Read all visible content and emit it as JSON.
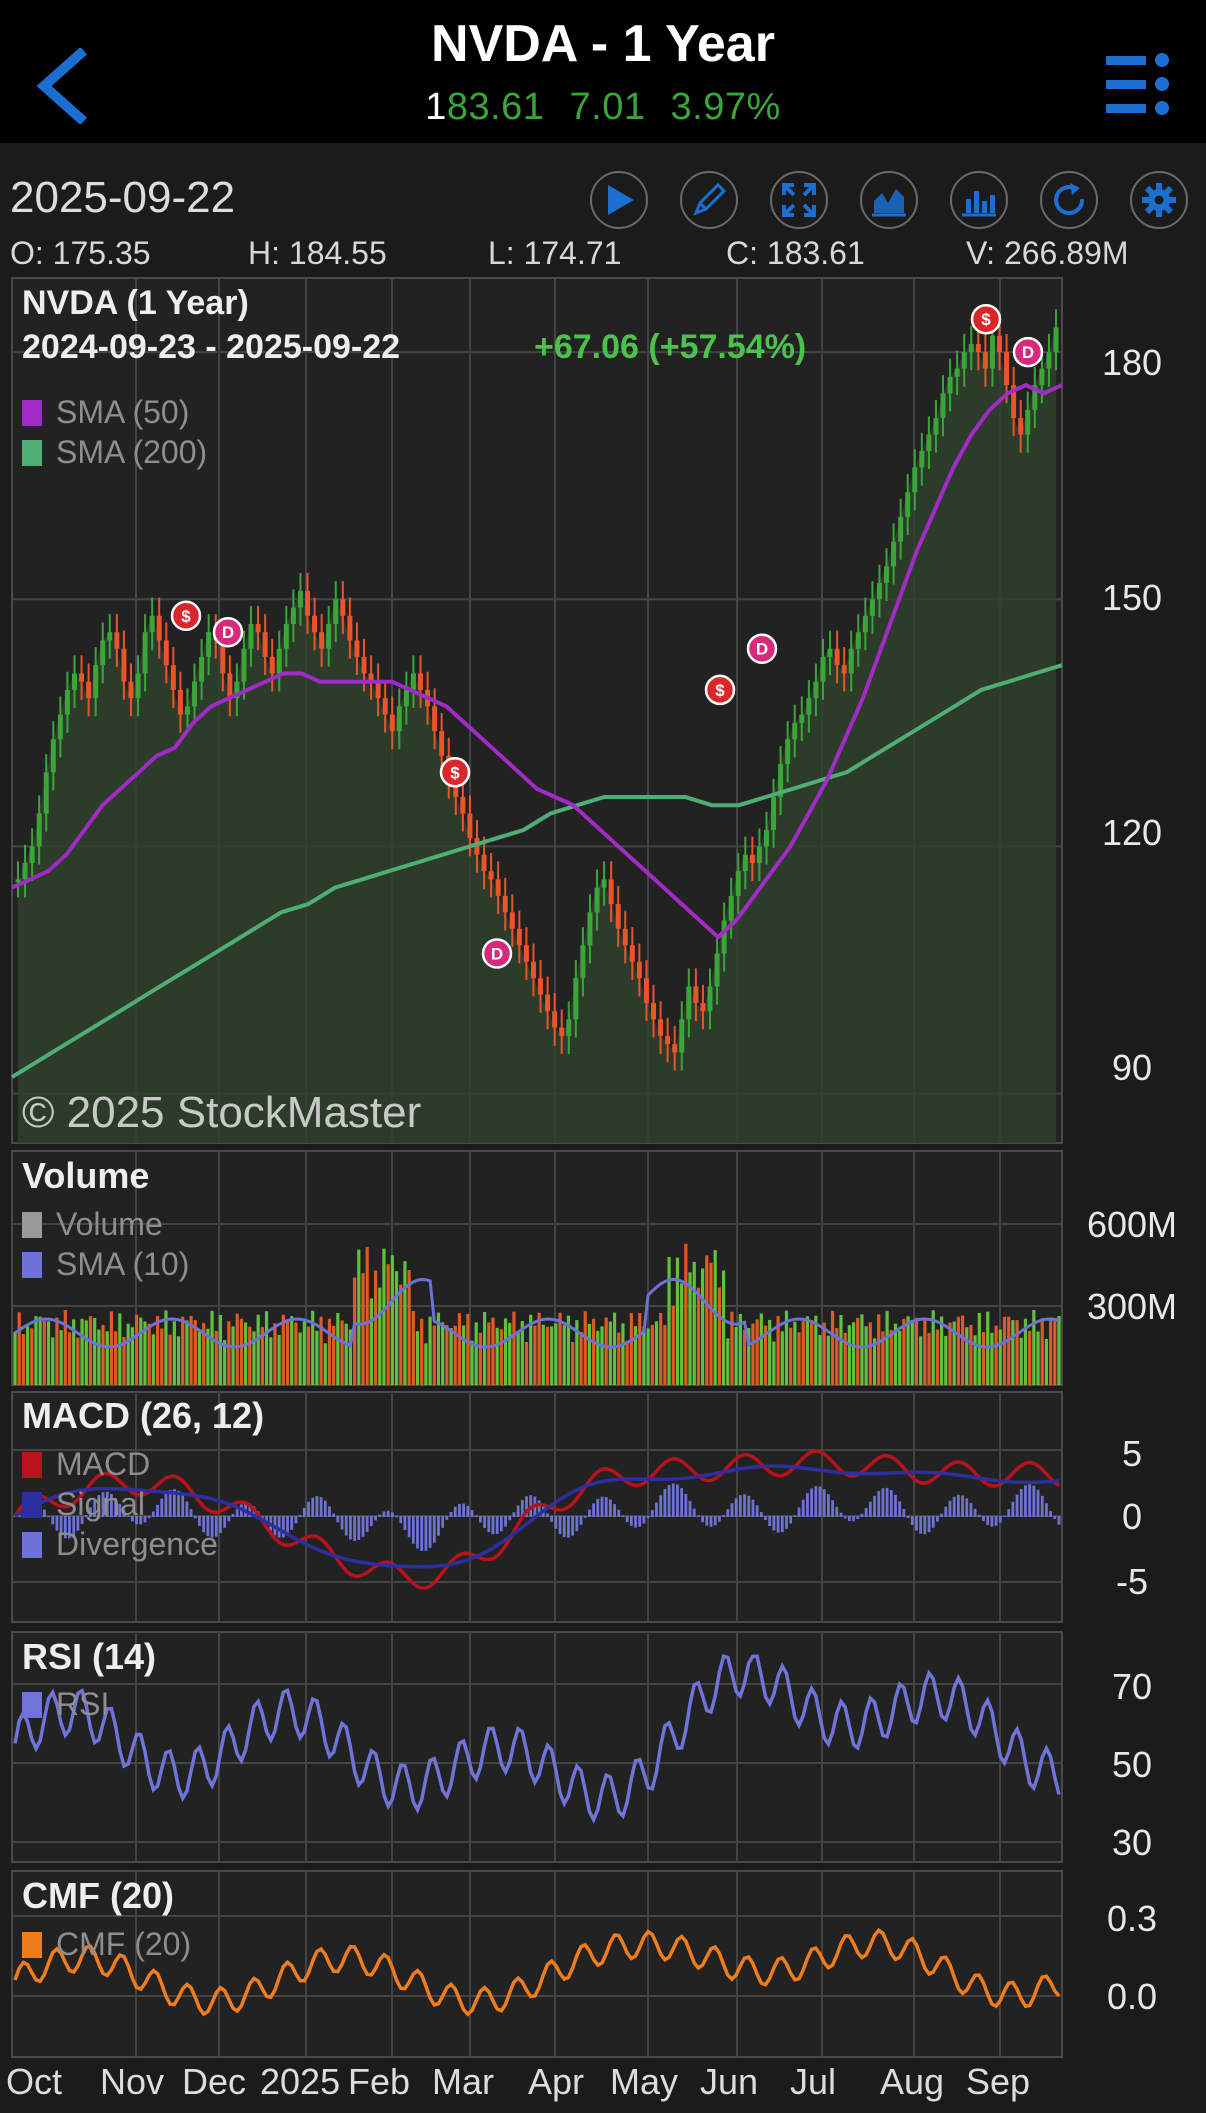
{
  "header": {
    "title": "NVDA - 1 Year",
    "price_lead": "1",
    "price_rest": "83.61",
    "change": "7.01",
    "change_pct": "3.97%"
  },
  "info": {
    "date": "2025-09-22",
    "open": "O: 175.35",
    "high": "H: 184.55",
    "low": "L: 174.71",
    "close": "C: 183.61",
    "volume": "V: 266.89M"
  },
  "toolbar": [
    {
      "name": "play-icon"
    },
    {
      "name": "draw-icon"
    },
    {
      "name": "fullscreen-icon"
    },
    {
      "name": "chart-type-icon"
    },
    {
      "name": "indicators-icon"
    },
    {
      "name": "refresh-icon"
    },
    {
      "name": "settings-icon"
    }
  ],
  "colors": {
    "accent": "#1a6fd1",
    "up": "#3aa63a",
    "down": "#e8552b",
    "sma50": "#a12bc7",
    "sma200": "#4fae73",
    "volume_sma": "#6c72d6",
    "macd": "#b8121a",
    "signal": "#2d2fa0",
    "rsi": "#6e74d8",
    "cmf": "#f07d1c"
  },
  "price_panel": {
    "title": "NVDA (1 Year)",
    "range": "2024-09-23 - 2025-09-22",
    "change": "+67.06 (+57.54%)",
    "legend": [
      "SMA (50)",
      "SMA (200)"
    ],
    "copyright": "© 2025 StockMaster"
  },
  "volume_panel": {
    "title": "Volume",
    "legend": [
      "Volume",
      "SMA (10)"
    ]
  },
  "macd_panel": {
    "title": "MACD (26, 12)",
    "legend": [
      "MACD",
      "Signal",
      "Divergence"
    ]
  },
  "rsi_panel": {
    "title": "RSI (14)",
    "legend": [
      "RSI"
    ]
  },
  "cmf_panel": {
    "title": "CMF (20)",
    "legend": [
      "CMF (20)"
    ]
  },
  "chart_data": [
    {
      "type": "line",
      "panel": "price",
      "xlabels": [
        "Oct",
        "Nov",
        "Dec",
        "2025",
        "Feb",
        "Mar",
        "Apr",
        "May",
        "Jun",
        "Jul",
        "Aug",
        "Sep"
      ],
      "yticks": [
        180,
        150,
        120,
        90
      ],
      "ylim": [
        84,
        189
      ],
      "close": [
        116,
        118,
        120,
        124,
        129,
        133,
        136,
        139,
        141,
        140,
        138,
        142,
        145,
        146,
        144,
        140,
        138,
        141,
        146,
        148,
        145,
        142,
        139,
        136,
        137,
        140,
        143,
        146,
        145,
        141,
        138,
        140,
        144,
        147,
        146,
        143,
        141,
        144,
        147,
        149,
        151,
        148,
        146,
        144,
        147,
        150,
        148,
        145,
        143,
        141,
        140,
        138,
        136,
        134,
        137,
        139,
        141,
        139,
        137,
        134,
        131,
        128,
        126,
        124,
        121,
        119,
        117,
        116,
        114,
        112,
        110,
        108,
        106,
        104,
        102,
        100,
        98,
        97,
        99,
        104,
        108,
        112,
        115,
        116,
        113,
        110,
        108,
        106,
        104,
        101,
        99,
        97,
        96,
        95,
        99,
        103,
        101,
        100,
        103,
        107,
        111,
        114,
        117,
        119,
        118,
        120,
        122,
        126,
        130,
        133,
        135,
        136,
        138,
        140,
        143,
        144,
        142,
        141,
        144,
        146,
        148,
        150,
        152,
        154,
        157,
        160,
        163,
        166,
        168,
        170,
        172,
        175,
        177,
        178,
        180,
        181,
        180,
        178,
        182,
        180,
        176,
        172,
        170,
        173,
        176,
        178,
        180,
        183
      ],
      "sma50": [
        115,
        116,
        117,
        119,
        122,
        125,
        127,
        129,
        131,
        132,
        135,
        137,
        138,
        139,
        140,
        141,
        141,
        140,
        140,
        140,
        140,
        140,
        139,
        138,
        137,
        135,
        133,
        131,
        129,
        127,
        126,
        125,
        123,
        121,
        119,
        117,
        115,
        113,
        111,
        109,
        111,
        114,
        117,
        120,
        124,
        128,
        133,
        138,
        144,
        150,
        156,
        161,
        166,
        170,
        173,
        175,
        176,
        175,
        176
      ],
      "sma200": [
        92,
        94,
        96,
        98,
        100,
        102,
        104,
        106,
        108,
        110,
        112,
        113,
        115,
        116,
        117,
        118,
        119,
        120,
        121,
        122,
        124,
        125,
        126,
        126,
        126,
        126,
        125,
        125,
        126,
        127,
        128,
        129,
        131,
        133,
        135,
        137,
        139,
        140,
        141,
        142
      ],
      "sma_label_values": {
        "sma50": "SMA (50)",
        "sma200": "SMA (200)"
      }
    },
    {
      "type": "bar",
      "panel": "volume",
      "yticks": [
        "600M",
        "300M"
      ]
    },
    {
      "type": "line",
      "panel": "macd",
      "yticks": [
        5,
        0,
        -5
      ]
    },
    {
      "type": "line",
      "panel": "rsi",
      "yticks": [
        70,
        50,
        30
      ]
    },
    {
      "type": "line",
      "panel": "cmf",
      "yticks": [
        "0.3",
        "0.0"
      ]
    }
  ]
}
